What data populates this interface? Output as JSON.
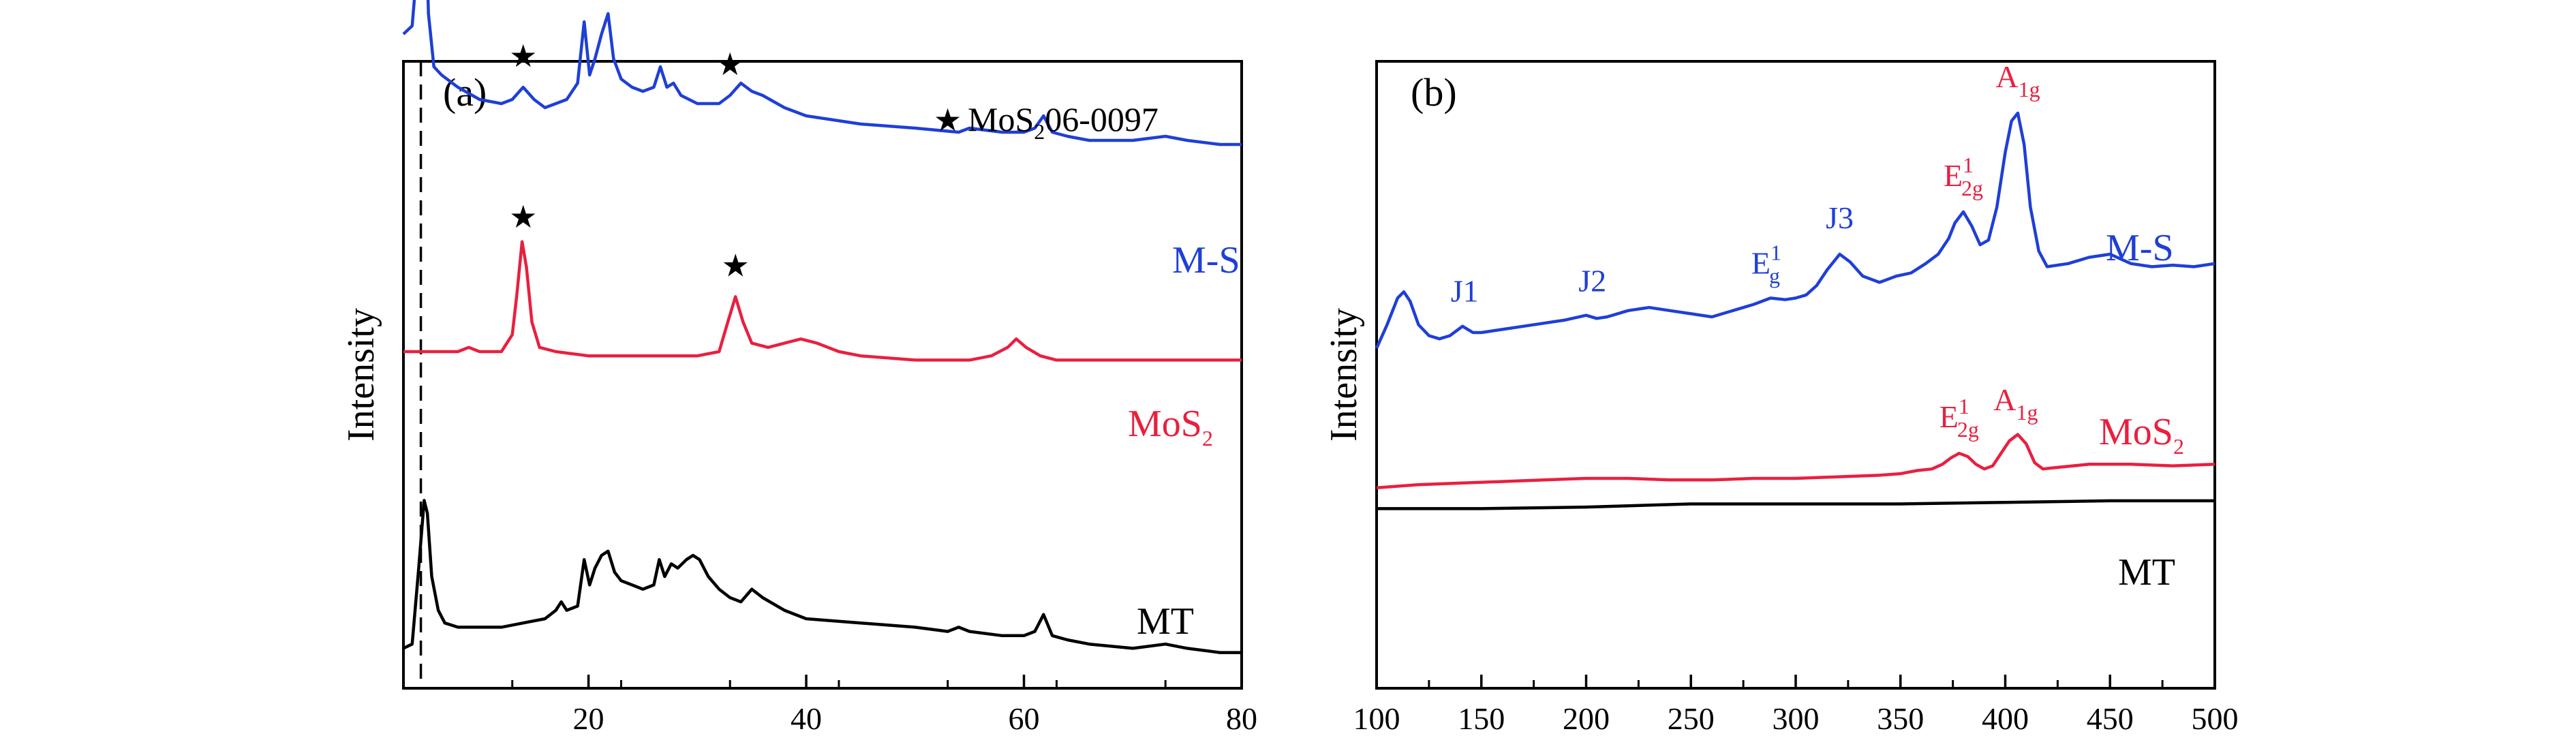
{
  "chart_data": [
    {
      "type": "line",
      "panel_label": "(a)",
      "ylabel": "Intensity",
      "xlabel": "",
      "xlim": [
        3,
        80
      ],
      "xticks": [
        20,
        40,
        60,
        80
      ],
      "y_ticks_shown": false,
      "grid": false,
      "legend": {
        "symbol": "★",
        "text": "MoS",
        "sub": "2",
        "suffix": "06-0097",
        "placement": "top-right"
      },
      "reference_line": {
        "x": 4.6,
        "style": "dashed"
      },
      "series": [
        {
          "name": "M-S",
          "color": "#1f3fd6",
          "x": [
            3,
            3.8,
            4.3,
            4.7,
            5.0,
            5.3,
            5.8,
            6.5,
            8,
            10,
            12,
            13,
            14,
            15,
            16,
            18,
            19,
            19.6,
            20.1,
            20.6,
            21.2,
            21.8,
            22.3,
            23,
            24,
            25,
            26,
            26.6,
            27.2,
            27.8,
            28.5,
            30,
            32,
            33,
            34,
            35,
            36,
            38,
            40,
            45,
            50,
            54,
            55,
            58,
            60,
            61,
            61.8,
            62.6,
            64,
            66,
            70,
            73,
            75,
            78,
            80
          ],
          "y": [
            60,
            62,
            78,
            100,
            93,
            65,
            52,
            50,
            47,
            44,
            43,
            44,
            47,
            44,
            42,
            44,
            48,
            63,
            50,
            54,
            60,
            65,
            54,
            49,
            47,
            46,
            47,
            52,
            47,
            48,
            45,
            43,
            43,
            45,
            48,
            46,
            45,
            42,
            40,
            38,
            37,
            36,
            37,
            36,
            36,
            37,
            40,
            36,
            35,
            34,
            34,
            35,
            34,
            33,
            33
          ]
        },
        {
          "name": "MoS2",
          "color": "#e8203f",
          "x": [
            3,
            6,
            8,
            9,
            10,
            11,
            12,
            13,
            13.4,
            13.9,
            14.3,
            14.8,
            15.5,
            17,
            20,
            25,
            30,
            32,
            32.8,
            33.5,
            34.2,
            35,
            36.5,
            38,
            39.5,
            41,
            43,
            45,
            50,
            55,
            57,
            58.5,
            59.3,
            60.2,
            61.5,
            63,
            65,
            70,
            75,
            80
          ],
          "y": [
            20,
            20,
            20,
            21,
            20,
            20,
            20,
            24,
            33,
            46,
            40,
            27,
            21,
            20,
            19,
            19,
            19,
            20,
            27,
            33,
            27,
            22,
            21,
            22,
            23,
            22,
            20,
            19,
            18,
            18,
            19,
            21,
            23,
            21,
            19,
            18,
            18,
            18,
            18,
            18
          ]
        },
        {
          "name": "MT",
          "color": "#000000",
          "x": [
            3,
            3.8,
            4.4,
            4.9,
            5.2,
            5.6,
            6.2,
            6.8,
            8,
            10,
            12,
            14,
            16,
            17,
            17.5,
            18,
            19,
            19.6,
            20.1,
            20.6,
            21.2,
            21.8,
            22.4,
            23,
            24,
            25,
            26,
            26.5,
            27,
            27.6,
            28.2,
            29,
            29.6,
            30.2,
            31,
            32,
            33,
            34,
            35,
            36,
            38,
            40,
            45,
            50,
            53,
            54,
            55,
            58,
            60,
            61,
            61.8,
            62.6,
            64,
            66,
            70,
            73,
            75,
            78,
            80
          ],
          "y": [
            3,
            4,
            22,
            38,
            35,
            20,
            12,
            9,
            8,
            8,
            8,
            9,
            10,
            12,
            14,
            12,
            13,
            24,
            18,
            22,
            25,
            26,
            21,
            19,
            18,
            17,
            18,
            24,
            20,
            23,
            22,
            24,
            25,
            24,
            20,
            17,
            15,
            14,
            17,
            15,
            12,
            10,
            9,
            8,
            7,
            8,
            7,
            6,
            6,
            7,
            11,
            6,
            5,
            4,
            3,
            4,
            3,
            2,
            2
          ]
        }
      ],
      "series_labels": [
        {
          "text": "M-S",
          "sub": "",
          "color": "#1f3fd6"
        },
        {
          "text": "MoS",
          "sub": "2",
          "color": "#e8203f"
        },
        {
          "text": "MT",
          "sub": "",
          "color": "#000000"
        }
      ],
      "star_markers": [
        {
          "series": 0,
          "x": 14
        },
        {
          "series": 0,
          "x": 33
        },
        {
          "series": 1,
          "x": 14
        },
        {
          "series": 1,
          "x": 33.5
        }
      ]
    },
    {
      "type": "line",
      "panel_label": "(b)",
      "ylabel": "Intensity",
      "xlabel": "",
      "xlim": [
        100,
        500
      ],
      "xticks": [
        100,
        150,
        200,
        250,
        300,
        350,
        400,
        450,
        500
      ],
      "y_ticks_shown": false,
      "grid": false,
      "series": [
        {
          "name": "M-S",
          "color": "#1f3fd6",
          "x": [
            100,
            105,
            110,
            113,
            116,
            120,
            125,
            130,
            135,
            141,
            146,
            150,
            160,
            170,
            180,
            190,
            200,
            205,
            210,
            220,
            230,
            240,
            250,
            260,
            270,
            280,
            288,
            295,
            300,
            305,
            310,
            315,
            321,
            326,
            332,
            340,
            348,
            355,
            362,
            368,
            373,
            376,
            380,
            384,
            388,
            392,
            396,
            400,
            403,
            406,
            409,
            412,
            416,
            420,
            430,
            440,
            450,
            455,
            460,
            470,
            480,
            490,
            500
          ],
          "y": [
            30,
            45,
            62,
            66,
            60,
            45,
            38,
            36,
            38,
            44,
            40,
            40,
            42,
            44,
            46,
            48,
            51,
            49,
            50,
            54,
            56,
            54,
            52,
            50,
            54,
            58,
            62,
            61,
            62,
            64,
            70,
            80,
            90,
            85,
            76,
            72,
            76,
            78,
            84,
            90,
            100,
            110,
            117,
            108,
            96,
            99,
            120,
            155,
            175,
            180,
            160,
            120,
            92,
            82,
            84,
            88,
            90,
            87,
            84,
            82,
            83,
            82,
            84
          ]
        },
        {
          "name": "MoS2",
          "color": "#e8203f",
          "x": [
            100,
            120,
            140,
            160,
            180,
            200,
            220,
            240,
            260,
            280,
            300,
            320,
            340,
            350,
            358,
            365,
            370,
            374,
            378,
            382,
            386,
            390,
            394,
            398,
            402,
            406,
            410,
            414,
            418,
            425,
            440,
            460,
            480,
            500
          ],
          "y": [
            4,
            6,
            7,
            8,
            9,
            10,
            10,
            9,
            9,
            10,
            10,
            11,
            12,
            13,
            15,
            16,
            19,
            23,
            26,
            24,
            19,
            16,
            18,
            26,
            34,
            38,
            32,
            20,
            16,
            17,
            19,
            19,
            18,
            19
          ]
        },
        {
          "name": "MT",
          "color": "#000000",
          "x": [
            100,
            150,
            200,
            250,
            300,
            350,
            400,
            450,
            500
          ],
          "y": [
            -68,
            -68,
            -67,
            -65,
            -65,
            -65,
            -64,
            -63,
            -63
          ]
        }
      ],
      "series_labels": [
        {
          "text": "M-S",
          "sub": "",
          "color": "#1f3fd6"
        },
        {
          "text": "MoS",
          "sub": "2",
          "color": "#e8203f"
        },
        {
          "text": "MT",
          "sub": "",
          "color": "#000000"
        }
      ],
      "peak_labels": [
        {
          "text": "J1",
          "x": 142,
          "series": 0,
          "color": "#1f3fd6"
        },
        {
          "text": "J2",
          "x": 203,
          "series": 0,
          "color": "#1f3fd6"
        },
        {
          "text": "E",
          "sup": "1",
          "sub": "g",
          "x": 286,
          "series": 0,
          "color": "#1f3fd6"
        },
        {
          "text": "J3",
          "x": 321,
          "series": 0,
          "color": "#1f3fd6"
        },
        {
          "text": "E",
          "sup": "1",
          "sub": "2g",
          "x": 380,
          "series": 0,
          "color": "#e8203f"
        },
        {
          "text": "A",
          "sub": "1g",
          "x": 406,
          "series": 0,
          "color": "#e8203f"
        },
        {
          "text": "E",
          "sup": "1",
          "sub": "2g",
          "x": 378,
          "series": 1,
          "color": "#e8203f"
        },
        {
          "text": "A",
          "sub": "1g",
          "x": 405,
          "series": 1,
          "color": "#e8203f"
        }
      ]
    }
  ]
}
